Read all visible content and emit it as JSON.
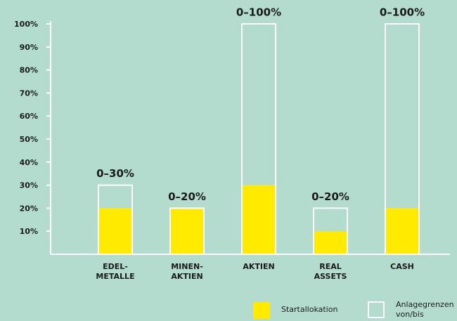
{
  "chart_data": {
    "type": "range-bar",
    "categories": [
      "EDEL-METALLE",
      "MINEN-AKTIEN",
      "AKTIEN",
      "REAL ASSETS",
      "CASH"
    ],
    "series": [
      {
        "name": "Startallokation",
        "color": "#ffea00",
        "values": [
          20,
          20,
          30,
          10,
          20
        ]
      },
      {
        "name": "Anlagegrenzen von/bis",
        "color": "#ffffff",
        "values": [
          30,
          20,
          100,
          20,
          100
        ],
        "value_labels": [
          "0–30%",
          "0–20%",
          "0–100%",
          "0–20%",
          "0–100%"
        ]
      }
    ],
    "ylim": [
      0,
      100
    ],
    "yticks": [
      {
        "value": 10,
        "label": "10%"
      },
      {
        "value": 20,
        "label": "20%"
      },
      {
        "value": 30,
        "label": "30%"
      },
      {
        "value": 40,
        "label": "40%"
      },
      {
        "value": 50,
        "label": "50%"
      },
      {
        "value": 60,
        "label": "60%"
      },
      {
        "value": 70,
        "label": "70%"
      },
      {
        "value": 80,
        "label": "80%"
      },
      {
        "value": 90,
        "label": "90%"
      },
      {
        "value": 100,
        "label": "100%"
      }
    ]
  }
}
